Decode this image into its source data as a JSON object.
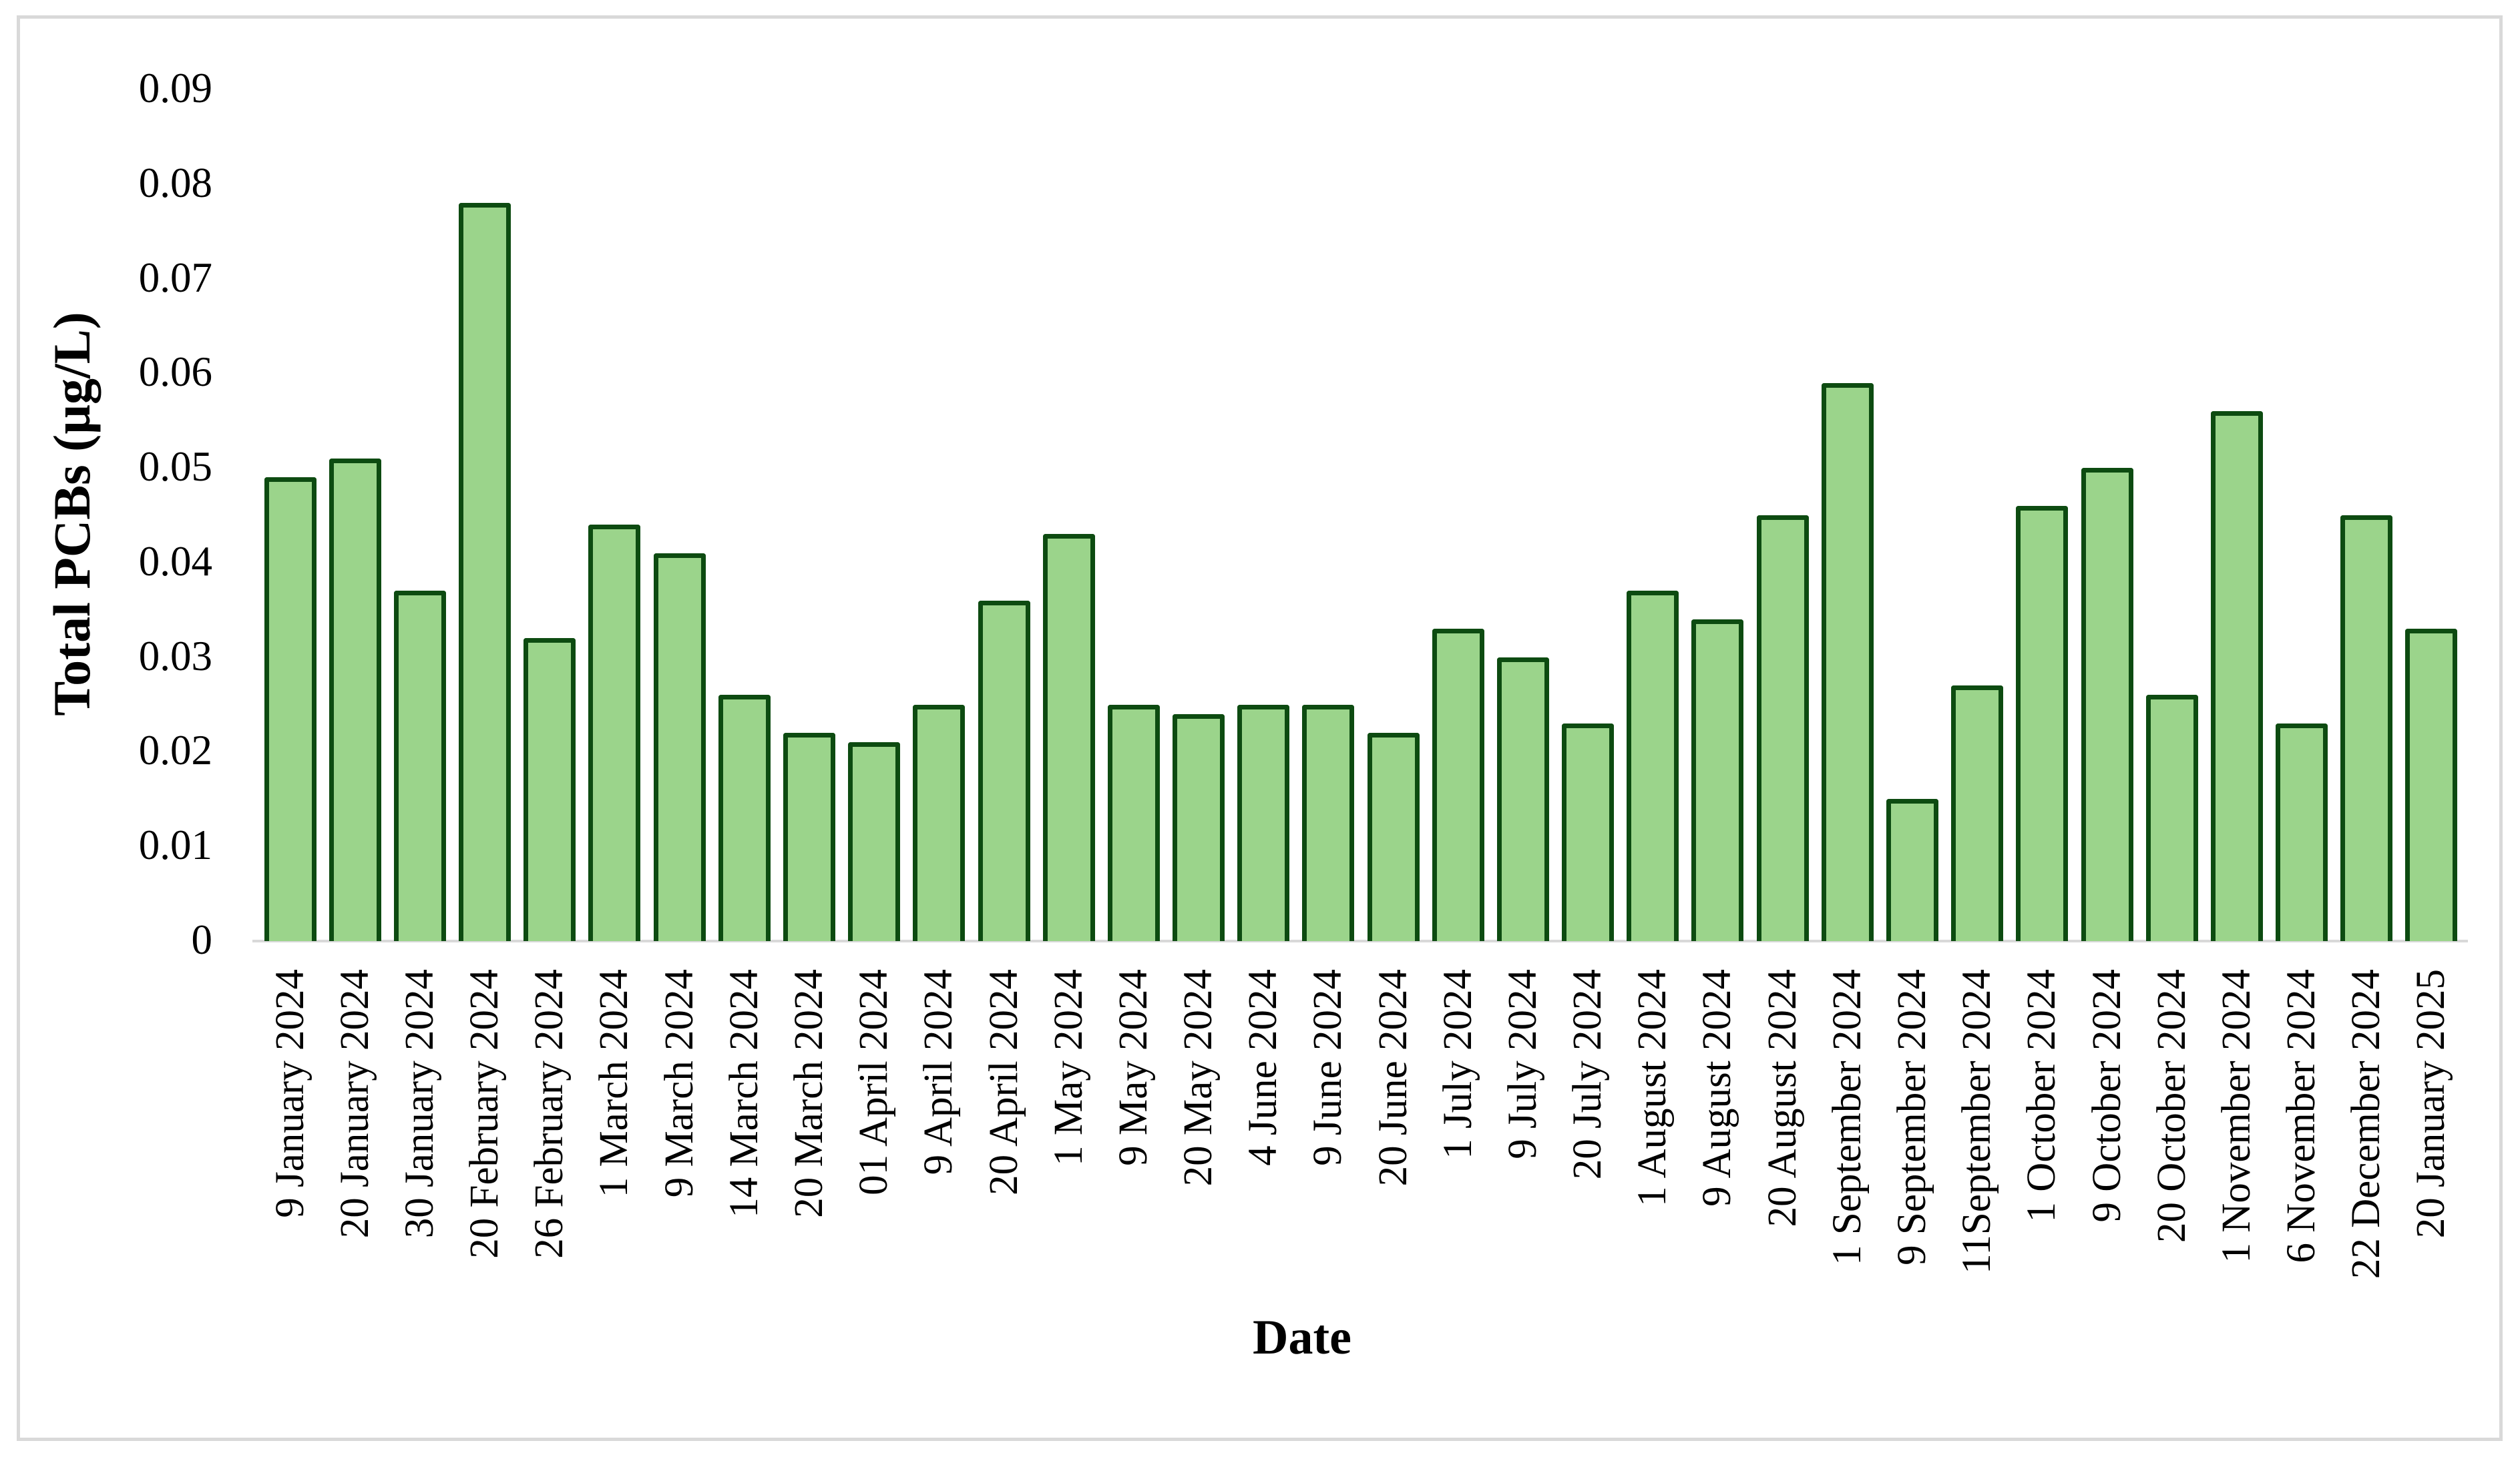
{
  "figure": {
    "background": "#ffffff",
    "border_color": "#d9d9d9"
  },
  "chart_data": {
    "type": "bar",
    "title": "",
    "xlabel": "Date",
    "ylabel": "Total PCBs (µg/L)",
    "ylim": [
      0,
      0.09
    ],
    "ytick_labels": [
      "0",
      "0.01",
      "0.02",
      "0.03",
      "0.04",
      "0.05",
      "0.06",
      "0.07",
      "0.08",
      "0.09"
    ],
    "grid": false,
    "legend": "none",
    "bar_fill_color": "#9bd48b",
    "bar_border_color": "#0d4b11",
    "axis_line_color": "#d9d9d9",
    "categories": [
      "9 January 2024",
      "20 January 2024",
      "30 January 2024",
      "20 February 2024",
      "26 February 2024",
      "1 March 2024",
      "9 March 2024",
      "14 March 2024",
      "20 March 2024",
      "01 April 2024",
      "9 April 2024",
      "20 April 2024",
      "1 May 2024",
      "9 May 2024",
      "20 May 2024",
      "4 June 2024",
      "9 June 2024",
      "20 June 2024",
      "1 July 2024",
      "9 July 2024",
      "20 July 2024",
      "1 August 2024",
      "9 August 2024",
      "20 August 2024",
      "1 September 2024",
      "9 September 2024",
      "11September 2024",
      "1 October 2024",
      "9 October 2024",
      "20 October 2024",
      "1 November 2024",
      "6 November 2024",
      "22 December 2024",
      "20 January 2025"
    ],
    "values": [
      0.049,
      0.051,
      0.037,
      0.078,
      0.032,
      0.044,
      0.041,
      0.026,
      0.022,
      0.021,
      0.025,
      0.036,
      0.043,
      0.025,
      0.024,
      0.025,
      0.025,
      0.022,
      0.033,
      0.03,
      0.023,
      0.037,
      0.034,
      0.045,
      0.059,
      0.015,
      0.027,
      0.046,
      0.05,
      0.026,
      0.056,
      0.023,
      0.045,
      0.033
    ]
  }
}
